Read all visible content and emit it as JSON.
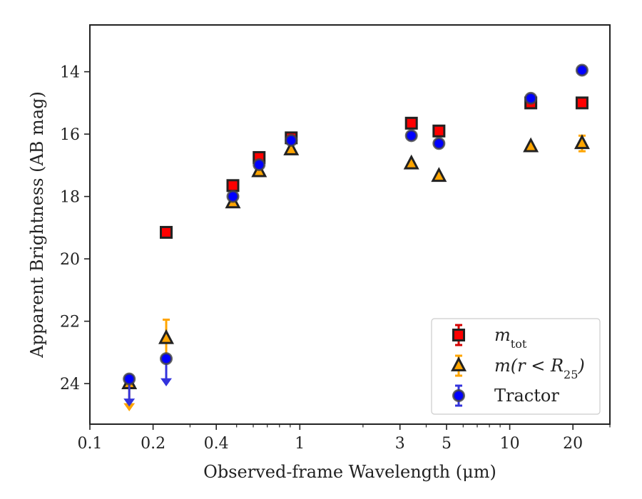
{
  "chart_data": {
    "type": "scatter",
    "xlabel": "Observed-frame Wavelength (μm)",
    "ylabel": "Apparent Brightness (AB mag)",
    "xscale": "log",
    "xlim": [
      0.1,
      30
    ],
    "ylim": [
      25.3,
      12.5
    ],
    "y_inverted": true,
    "x_ticks": [
      {
        "value": 0.1,
        "label": "0.1"
      },
      {
        "value": 0.2,
        "label": "0.2"
      },
      {
        "value": 0.4,
        "label": "0.4"
      },
      {
        "value": 1,
        "label": "1"
      },
      {
        "value": 3,
        "label": "3"
      },
      {
        "value": 5,
        "label": "5"
      },
      {
        "value": 10,
        "label": "10"
      },
      {
        "value": 20,
        "label": "20"
      }
    ],
    "x_minor_ticks": [
      0.3,
      0.5,
      0.6,
      0.7,
      0.8,
      0.9,
      2,
      4,
      6,
      7,
      8,
      9,
      30
    ],
    "y_ticks": [
      14,
      16,
      18,
      20,
      22,
      24
    ],
    "grid": false,
    "legend_position": "lower-right",
    "series": [
      {
        "name": "m_tot",
        "label_main": "m",
        "label_sub": "tot",
        "marker": "square",
        "color": "#ff0000",
        "edgecolor": "#222222",
        "errcolor": "#d40000",
        "points": [
          {
            "x": 0.231,
            "y": 19.15
          },
          {
            "x": 0.48,
            "y": 17.65
          },
          {
            "x": 0.64,
            "y": 16.75
          },
          {
            "x": 0.91,
            "y": 16.12
          },
          {
            "x": 3.4,
            "y": 15.65
          },
          {
            "x": 4.6,
            "y": 15.9
          },
          {
            "x": 12.6,
            "y": 15.0
          },
          {
            "x": 22.1,
            "y": 15.0
          }
        ]
      },
      {
        "name": "m(r<R25)",
        "label_main": "m(r < R",
        "label_sub": "25",
        "label_end": ")",
        "marker": "triangle",
        "color": "#ffa500",
        "edgecolor": "#222222",
        "errcolor": "#ffa500",
        "points": [
          {
            "x": 0.154,
            "y": 24.0,
            "upper_limit": true
          },
          {
            "x": 0.231,
            "y": 22.55,
            "yerr_low": 0.6,
            "yerr_high": 0.6
          },
          {
            "x": 0.48,
            "y": 18.2
          },
          {
            "x": 0.64,
            "y": 17.2
          },
          {
            "x": 0.91,
            "y": 16.5
          },
          {
            "x": 3.4,
            "y": 16.95
          },
          {
            "x": 4.6,
            "y": 17.35
          },
          {
            "x": 12.6,
            "y": 16.4
          },
          {
            "x": 22.1,
            "y": 16.3,
            "yerr_low": 0.25,
            "yerr_high": 0.25
          }
        ]
      },
      {
        "name": "Tractor",
        "label_main": "Tractor",
        "marker": "circle",
        "color": "#0000ff",
        "edgecolor": "#444444",
        "errcolor": "#3333dd",
        "points": [
          {
            "x": 0.154,
            "y": 23.85,
            "upper_limit": true
          },
          {
            "x": 0.231,
            "y": 23.2,
            "upper_limit": true
          },
          {
            "x": 0.48,
            "y": 18.0
          },
          {
            "x": 0.64,
            "y": 16.98
          },
          {
            "x": 0.91,
            "y": 16.2
          },
          {
            "x": 3.4,
            "y": 16.05
          },
          {
            "x": 4.6,
            "y": 16.3
          },
          {
            "x": 12.6,
            "y": 14.85
          },
          {
            "x": 22.1,
            "y": 13.95
          }
        ]
      }
    ]
  }
}
